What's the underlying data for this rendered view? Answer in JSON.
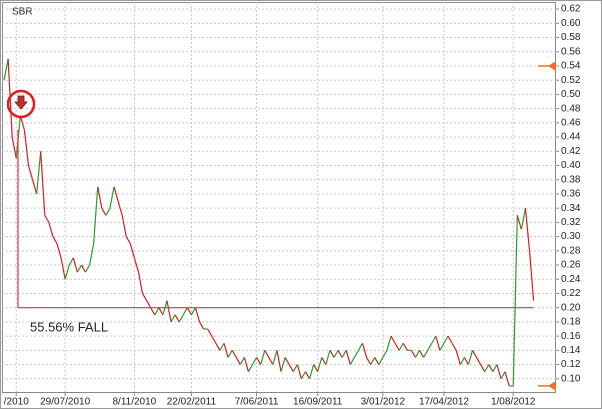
{
  "chart_data": {
    "type": "line",
    "title": "SBR",
    "up_color": "#2e9a2e",
    "down_color": "#d02020",
    "values": [
      0.52,
      0.55,
      0.44,
      0.41,
      0.47,
      0.45,
      0.4,
      0.38,
      0.36,
      0.42,
      0.33,
      0.32,
      0.3,
      0.29,
      0.27,
      0.24,
      0.26,
      0.27,
      0.25,
      0.26,
      0.25,
      0.26,
      0.29,
      0.37,
      0.34,
      0.33,
      0.34,
      0.37,
      0.35,
      0.33,
      0.3,
      0.29,
      0.27,
      0.25,
      0.22,
      0.21,
      0.2,
      0.19,
      0.2,
      0.19,
      0.21,
      0.18,
      0.19,
      0.18,
      0.19,
      0.2,
      0.19,
      0.2,
      0.18,
      0.17,
      0.17,
      0.16,
      0.15,
      0.14,
      0.15,
      0.13,
      0.14,
      0.13,
      0.12,
      0.13,
      0.11,
      0.12,
      0.13,
      0.12,
      0.14,
      0.13,
      0.12,
      0.14,
      0.11,
      0.13,
      0.12,
      0.11,
      0.12,
      0.1,
      0.11,
      0.1,
      0.12,
      0.11,
      0.13,
      0.12,
      0.14,
      0.13,
      0.14,
      0.13,
      0.14,
      0.12,
      0.13,
      0.14,
      0.15,
      0.13,
      0.12,
      0.13,
      0.12,
      0.13,
      0.14,
      0.16,
      0.15,
      0.14,
      0.15,
      0.14,
      0.14,
      0.13,
      0.14,
      0.13,
      0.14,
      0.15,
      0.16,
      0.14,
      0.15,
      0.16,
      0.15,
      0.14,
      0.12,
      0.13,
      0.12,
      0.14,
      0.13,
      0.12,
      0.11,
      0.12,
      0.11,
      0.12,
      0.1,
      0.11,
      0.09,
      0.09,
      0.33,
      0.31,
      0.34,
      0.28,
      0.21
    ],
    "xlim": [
      -0.5,
      135.5
    ],
    "xticks": [
      {
        "value": 3,
        "label": "/2010"
      },
      {
        "value": 15,
        "label": "29/07/2010"
      },
      {
        "value": 32,
        "label": "8/11/2010"
      },
      {
        "value": 46,
        "label": "22/02/2011"
      },
      {
        "value": 62,
        "label": "7/06/2011"
      },
      {
        "value": 77,
        "label": "16/09/2011"
      },
      {
        "value": 93,
        "label": "3/01/2012"
      },
      {
        "value": 108,
        "label": "17/04/2012"
      },
      {
        "value": 125,
        "label": "1/08/2012"
      }
    ],
    "ylim": [
      0.08,
      0.63
    ],
    "yticks": [
      {
        "value": 0.1,
        "label": "0.10"
      },
      {
        "value": 0.12,
        "label": "0.12"
      },
      {
        "value": 0.14,
        "label": "0.14"
      },
      {
        "value": 0.16,
        "label": "0.16"
      },
      {
        "value": 0.18,
        "label": "0.18"
      },
      {
        "value": 0.2,
        "label": "0.20"
      },
      {
        "value": 0.22,
        "label": "0.22"
      },
      {
        "value": 0.24,
        "label": "0.24"
      },
      {
        "value": 0.26,
        "label": "0.26"
      },
      {
        "value": 0.28,
        "label": "0.28"
      },
      {
        "value": 0.3,
        "label": "0.30"
      },
      {
        "value": 0.32,
        "label": "0.32"
      },
      {
        "value": 0.34,
        "label": "0.34"
      },
      {
        "value": 0.36,
        "label": "0.36"
      },
      {
        "value": 0.38,
        "label": "0.38"
      },
      {
        "value": 0.4,
        "label": "0.40"
      },
      {
        "value": 0.42,
        "label": "0.42"
      },
      {
        "value": 0.44,
        "label": "0.44"
      },
      {
        "value": 0.46,
        "label": "0.46"
      },
      {
        "value": 0.48,
        "label": "0.48"
      },
      {
        "value": 0.5,
        "label": "0.50"
      },
      {
        "value": 0.52,
        "label": "0.52"
      },
      {
        "value": 0.54,
        "label": "0.54"
      },
      {
        "value": 0.56,
        "label": "0.56"
      },
      {
        "value": 0.58,
        "label": "0.58"
      },
      {
        "value": 0.6,
        "label": "0.60"
      },
      {
        "value": 0.62,
        "label": "0.62"
      }
    ],
    "grid": true,
    "annotation": {
      "text": "55.56% FALL",
      "from": 0.45,
      "to": 0.2,
      "color": "#e03050"
    },
    "price_markers": [
      0.54,
      0.09
    ],
    "marker_color": "#f07020"
  }
}
